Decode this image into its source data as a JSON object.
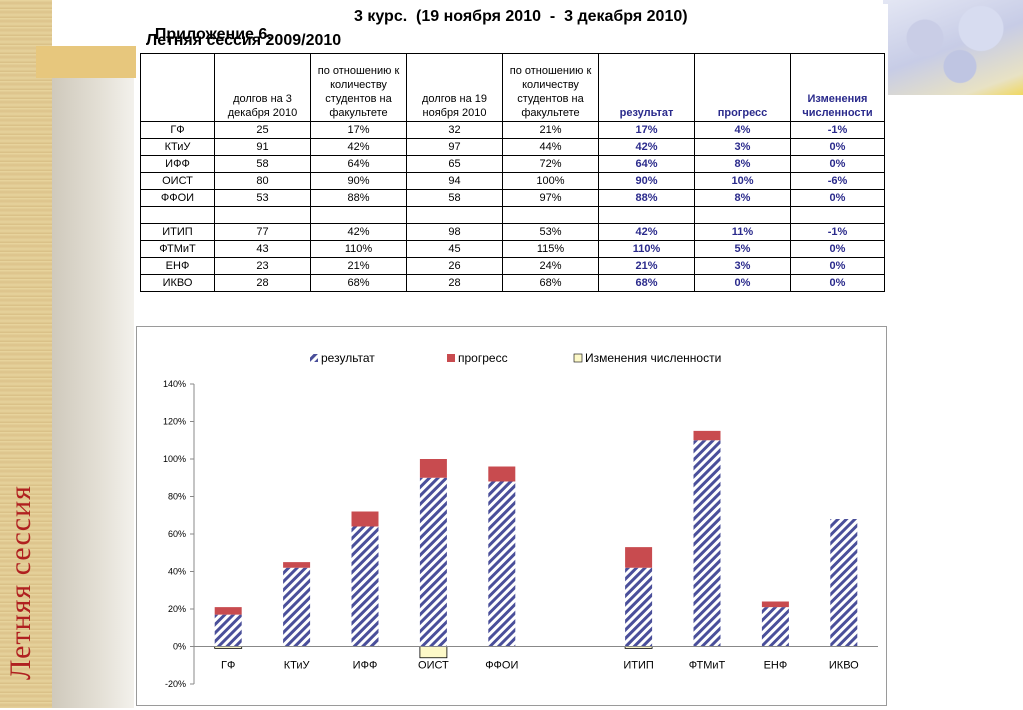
{
  "slide": {
    "side_title": "Летняя сессия"
  },
  "header": {
    "appendix": "Приложение 6.",
    "course_period": "3 курс.  (19 ноября 2010  -  3 декабря 2010)",
    "session": "Летняя сессия 2009/2010"
  },
  "table": {
    "columns": [
      "",
      "долгов на 3 декабря 2010",
      "по отношению к количеству студентов на факультете",
      "долгов на 19 ноября 2010",
      "по отношению к количеству студентов на факультете",
      "результат",
      "прогресс",
      "Изменения численности"
    ],
    "rows": [
      [
        "ГФ",
        "25",
        "17%",
        "32",
        "21%",
        "17%",
        "4%",
        "-1%"
      ],
      [
        "КТиУ",
        "91",
        "42%",
        "97",
        "44%",
        "42%",
        "3%",
        "0%"
      ],
      [
        "ИФФ",
        "58",
        "64%",
        "65",
        "72%",
        "64%",
        "8%",
        "0%"
      ],
      [
        "ОИСТ",
        "80",
        "90%",
        "94",
        "100%",
        "90%",
        "10%",
        "-6%"
      ],
      [
        "ФФОИ",
        "53",
        "88%",
        "58",
        "97%",
        "88%",
        "8%",
        "0%"
      ],
      [
        "",
        "",
        "",
        "",
        "",
        "",
        "",
        ""
      ],
      [
        "ИТИП",
        "77",
        "42%",
        "98",
        "53%",
        "42%",
        "11%",
        "-1%"
      ],
      [
        "ФТМиТ",
        "43",
        "110%",
        "45",
        "115%",
        "110%",
        "5%",
        "0%"
      ],
      [
        "ЕНФ",
        "23",
        "21%",
        "26",
        "24%",
        "21%",
        "3%",
        "0%"
      ],
      [
        "ИКВО",
        "28",
        "68%",
        "28",
        "68%",
        "68%",
        "0%",
        "0%"
      ]
    ]
  },
  "colors": {
    "result": "#4a4f9a",
    "progress": "#c84b4f",
    "change": "#fdf9c8",
    "table_blue": "#2b2b8c",
    "side_title": "#b02020"
  },
  "chart_data": {
    "type": "bar",
    "stacked": true,
    "categories": [
      "ГФ",
      "КТиУ",
      "ИФФ",
      "ОИСТ",
      "ФФОИ",
      "",
      "ИТИП",
      "ФТМиТ",
      "ЕНФ",
      "ИКВО"
    ],
    "series": [
      {
        "name": "результат",
        "values": [
          17,
          42,
          64,
          90,
          88,
          null,
          42,
          110,
          21,
          68
        ],
        "pattern": "diagonal-hatch"
      },
      {
        "name": "прогресс",
        "values": [
          4,
          3,
          8,
          10,
          8,
          null,
          11,
          5,
          3,
          0
        ]
      },
      {
        "name": "Изменения численности",
        "values": [
          -1,
          0,
          0,
          -6,
          0,
          null,
          -1,
          0,
          0,
          0
        ]
      }
    ],
    "y_ticks": [
      "-20%",
      "0%",
      "20%",
      "40%",
      "60%",
      "80%",
      "100%",
      "120%",
      "140%"
    ],
    "ylim": [
      -20,
      140
    ],
    "legend_position": "top",
    "grid": false
  }
}
